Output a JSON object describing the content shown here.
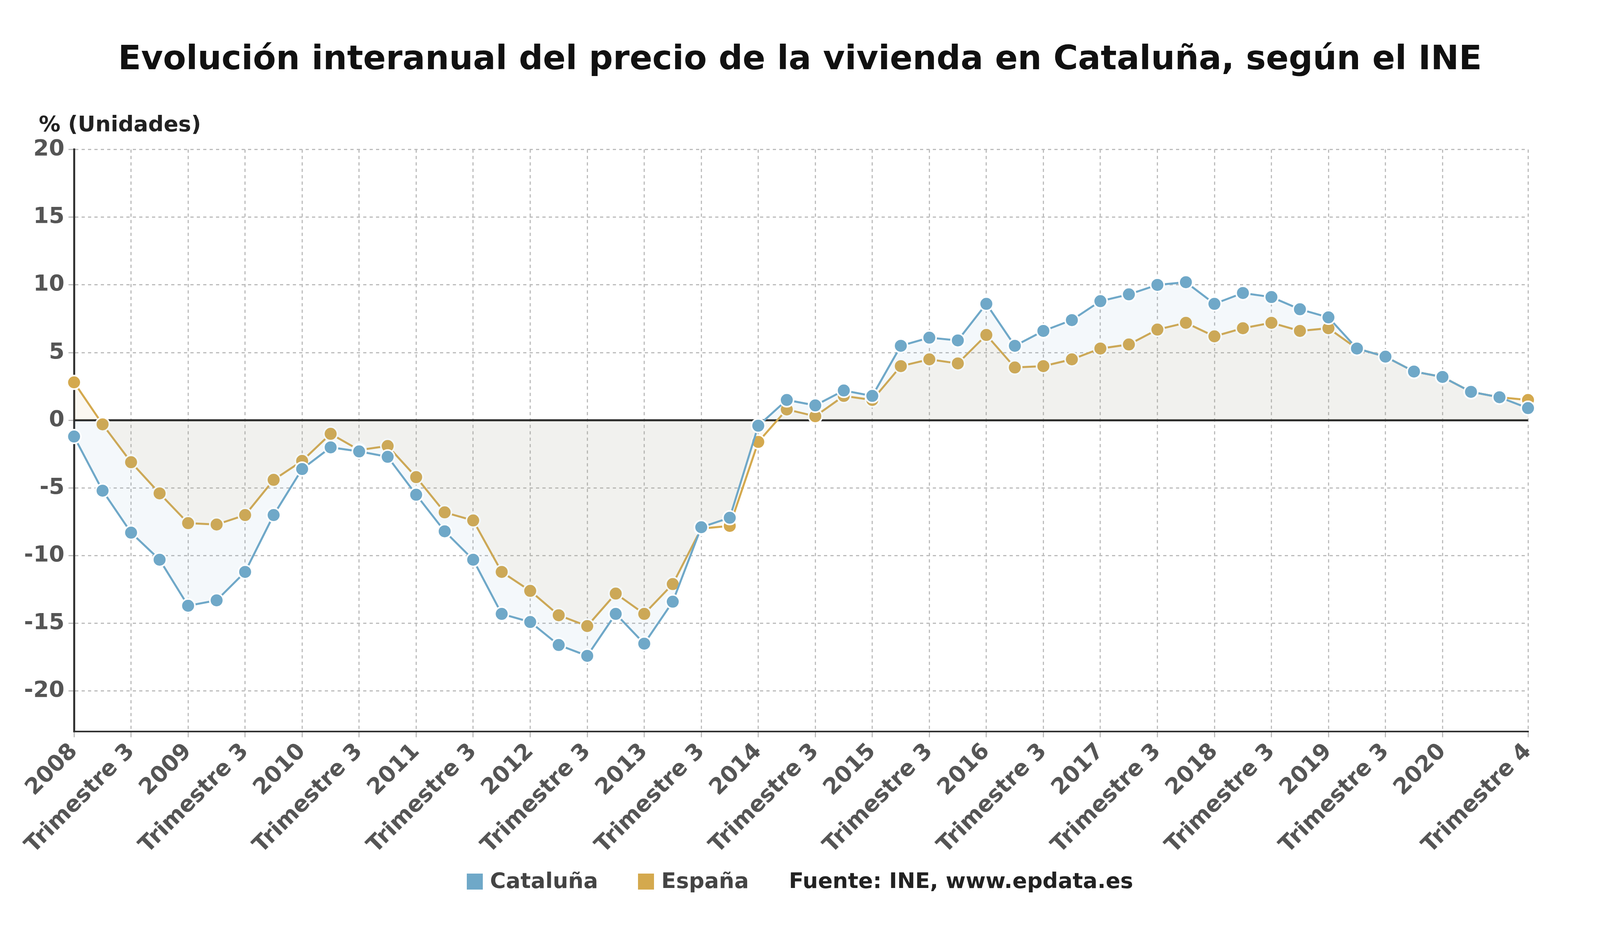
{
  "chart_data": {
    "type": "line",
    "title": "Evolución interanual del precio de la vivienda en Cataluña, según el INE",
    "y_label": "% (Unidades)",
    "source": "Fuente: INE, www.epdata.es",
    "categories": [
      "2008",
      null,
      "Trimestre 3",
      null,
      "2009",
      null,
      "Trimestre 3",
      null,
      "2010",
      null,
      "Trimestre 3",
      null,
      "2011",
      null,
      "Trimestre 3",
      null,
      "2012",
      null,
      "Trimestre 3",
      null,
      "2013",
      null,
      "Trimestre 3",
      null,
      "2014",
      null,
      "Trimestre 3",
      null,
      "2015",
      null,
      "Trimestre 3",
      null,
      "2016",
      null,
      "Trimestre 3",
      null,
      "2017",
      null,
      "Trimestre 3",
      null,
      "2018",
      null,
      "Trimestre 3",
      null,
      "2019",
      null,
      "Trimestre 3",
      null,
      "2020",
      null,
      null,
      "Trimestre 4"
    ],
    "series": [
      {
        "name": "Cataluña",
        "color": "#6fa8c8",
        "marker": "circle",
        "values": [
          -1.2,
          -5.2,
          -8.3,
          -10.3,
          -13.7,
          -13.3,
          -11.2,
          -7.0,
          -3.6,
          -2.0,
          -2.3,
          -2.7,
          -5.5,
          -8.2,
          -10.3,
          -14.3,
          -14.9,
          -16.6,
          -17.4,
          -14.3,
          -16.5,
          -13.4,
          -7.9,
          -7.2,
          -0.4,
          1.5,
          1.1,
          2.2,
          1.8,
          5.5,
          6.1,
          5.9,
          8.6,
          5.5,
          6.6,
          7.4,
          8.8,
          9.3,
          10.0,
          10.2,
          8.6,
          9.4,
          9.1,
          8.2,
          7.6,
          5.3,
          4.7,
          3.6,
          3.2,
          2.1,
          1.7,
          0.9
        ]
      },
      {
        "name": "España",
        "color": "#d4a94e",
        "marker": "circle",
        "values": [
          2.8,
          -0.3,
          -3.1,
          -5.4,
          -7.6,
          -7.7,
          -7.0,
          -4.4,
          -3.0,
          -1.0,
          -2.2,
          -1.9,
          -4.2,
          -6.8,
          -7.4,
          -11.2,
          -12.6,
          -14.4,
          -15.2,
          -12.8,
          -14.3,
          -12.1,
          -8.0,
          -7.8,
          -1.6,
          0.8,
          0.3,
          1.8,
          1.5,
          4.0,
          4.5,
          4.2,
          6.3,
          3.9,
          4.0,
          4.5,
          5.3,
          5.6,
          6.7,
          7.2,
          6.2,
          6.8,
          7.2,
          6.6,
          6.8,
          5.3,
          4.7,
          3.6,
          3.2,
          2.1,
          1.7,
          1.5
        ]
      }
    ],
    "ylim": [
      -23,
      20
    ],
    "yticks": [
      -20,
      -15,
      -10,
      -5,
      0,
      5,
      10,
      15,
      20
    ],
    "grid": true,
    "legend": "bottom"
  }
}
